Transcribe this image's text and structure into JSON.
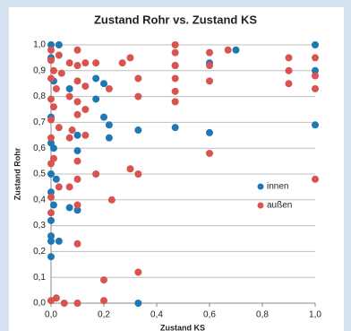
{
  "chart_data": {
    "type": "scatter",
    "title": "Zustand Rohr vs. Zustand KS",
    "x_label": "Zustand KS",
    "y_label": "Zustand Rohr",
    "xlim": [
      0,
      1
    ],
    "ylim": [
      0,
      1
    ],
    "xticks": [
      {
        "value": 0,
        "label": "0,0"
      },
      {
        "value": 0.2,
        "label": "0,2"
      },
      {
        "value": 0.4,
        "label": "0,4"
      },
      {
        "value": 0.6,
        "label": "0,6"
      },
      {
        "value": 0.8,
        "label": "0,8"
      },
      {
        "value": 1,
        "label": "1,0"
      }
    ],
    "yticks": [
      {
        "value": 0,
        "label": "0,0"
      },
      {
        "value": 0.1,
        "label": "0,1"
      },
      {
        "value": 0.2,
        "label": "0,2"
      },
      {
        "value": 0.3,
        "label": "0,3"
      },
      {
        "value": 0.4,
        "label": "0,4"
      },
      {
        "value": 0.5,
        "label": "0,5"
      },
      {
        "value": 0.6,
        "label": "0,6"
      },
      {
        "value": 0.7,
        "label": "0,7"
      },
      {
        "value": 0.8,
        "label": "0,8"
      },
      {
        "value": 0.9,
        "label": "0,9"
      },
      {
        "value": 1,
        "label": "1,0"
      }
    ],
    "grid": true,
    "legend": "right",
    "series": [
      {
        "name": "innen",
        "color": "#1f78b4",
        "x": [
          0,
          0.03,
          0,
          0.01,
          0,
          0,
          0.01,
          0,
          0.02,
          0,
          0.01,
          0,
          0,
          0,
          0.03,
          0,
          0.07,
          0.1,
          0.1,
          0.1,
          0.07,
          0.17,
          0.17,
          0.2,
          0.2,
          0.22,
          0.22,
          0.33,
          0.33,
          0.47,
          0.47,
          0.6,
          0.6,
          0.7,
          1,
          1,
          1
        ],
        "values": [
          1.0,
          1.0,
          0.95,
          0.86,
          0.72,
          0.62,
          0.6,
          0.5,
          0.48,
          0.43,
          0.38,
          0.32,
          0.26,
          0.24,
          0.24,
          0.18,
          0.37,
          0.36,
          0.65,
          0.59,
          0.83,
          0.87,
          0.79,
          0.85,
          0.72,
          0.69,
          0.64,
          0.67,
          0.0,
          0.68,
          0.92,
          0.66,
          0.93,
          0.98,
          1.0,
          0.69,
          0.9
        ]
      },
      {
        "name": "außen",
        "color": "#d9534f",
        "x": [
          0,
          0,
          0.01,
          0,
          0.02,
          0,
          0.01,
          0,
          0.03,
          0,
          0.01,
          0,
          0.03,
          0,
          0,
          0.02,
          0,
          0.05,
          0.03,
          0.04,
          0.07,
          0.07,
          0.08,
          0.07,
          0.07,
          0.1,
          0.1,
          0.1,
          0.1,
          0.1,
          0.1,
          0.1,
          0.1,
          0.1,
          0.1,
          0.13,
          0.13,
          0.13,
          0.17,
          0.17,
          0.2,
          0.2,
          0.22,
          0.23,
          0.27,
          0.3,
          0.3,
          0.33,
          0.33,
          0.33,
          0.33,
          0.47,
          0.47,
          0.47,
          0.47,
          0.47,
          0.47,
          0.6,
          0.6,
          0.6,
          0.6,
          0.67,
          0.9,
          0.9,
          0.9,
          1,
          1,
          1,
          1,
          0.13
        ],
        "values": [
          0.98,
          0.94,
          0.9,
          0.87,
          0.83,
          0.79,
          0.76,
          0.71,
          0.68,
          0.64,
          0.56,
          0.54,
          0.45,
          0.41,
          0.35,
          0.02,
          0.01,
          0.0,
          0.96,
          0.89,
          0.93,
          0.8,
          0.67,
          0.64,
          0.45,
          0.98,
          0.92,
          0.86,
          0.78,
          0.73,
          0.55,
          0.48,
          0.38,
          0.23,
          0.0,
          0.93,
          0.84,
          0.75,
          0.93,
          0.5,
          0.09,
          0.01,
          0.83,
          0.4,
          0.93,
          0.52,
          0.95,
          0.87,
          0.8,
          0.5,
          0.12,
          1.0,
          0.97,
          0.92,
          0.87,
          0.82,
          0.78,
          0.97,
          0.92,
          0.86,
          0.58,
          0.98,
          0.95,
          0.9,
          0.85,
          0.95,
          0.88,
          0.83,
          0.48,
          0.65
        ]
      }
    ]
  }
}
